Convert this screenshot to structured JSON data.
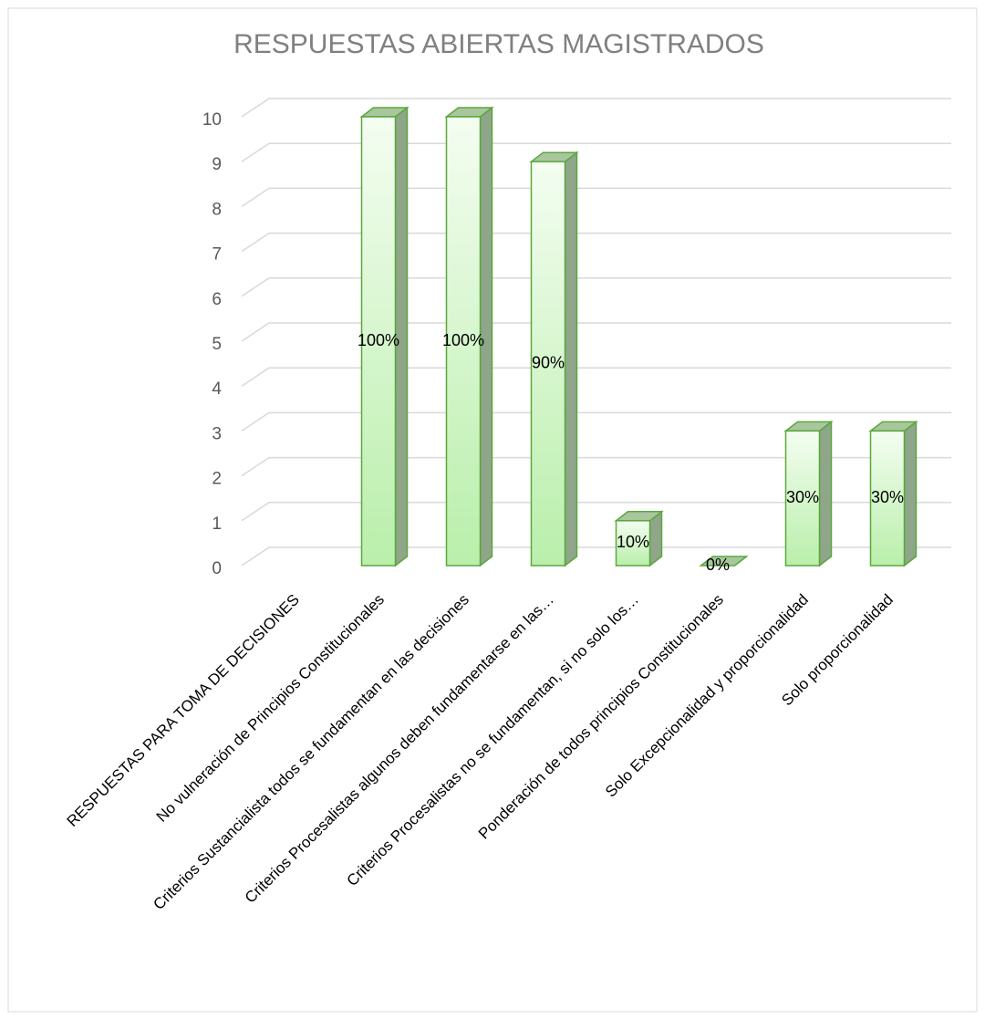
{
  "chart_data": {
    "type": "bar3d",
    "title": "RESPUESTAS ABIERTAS MAGISTRADOS",
    "categories": [
      "RESPUESTAS PARA TOMA DE DECISIONES",
      "No vulneración de Principios Constitucionales",
      "Criterios Sustancialista todos se fundamentan en las decisiones",
      "Criterios Procesalistas algunos deben fundamentarse en las…",
      "Criterios Procesalistas no se fundamentan, si no solo los…",
      "Ponderación de todos principios Constitucionales",
      "Solo Excepcionalidad y proporcionalidad",
      "Solo proporcionalidad"
    ],
    "values": [
      null,
      10,
      10,
      9,
      1,
      0,
      3,
      3
    ],
    "value_labels": [
      null,
      "100%",
      "100%",
      "90%",
      "10%",
      "0%",
      "30%",
      "30%"
    ],
    "color": "#b9efab",
    "ylim": [
      0,
      10
    ],
    "yticks": [
      0,
      1,
      2,
      3,
      4,
      5,
      6,
      7,
      8,
      9,
      10
    ],
    "grid": true
  }
}
